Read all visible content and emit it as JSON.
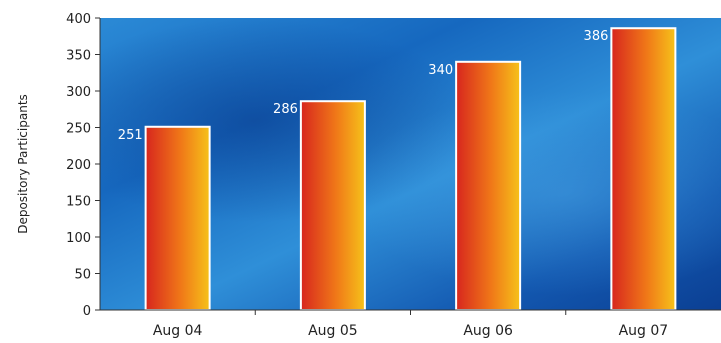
{
  "chart_data": {
    "type": "bar",
    "categories": [
      "Aug 04",
      "Aug 05",
      "Aug 06",
      "Aug 07"
    ],
    "values": [
      251,
      286,
      340,
      386
    ],
    "data_labels": [
      "251",
      "286",
      "340",
      "386"
    ],
    "title": "",
    "xlabel": "",
    "ylabel": "Depository Participants",
    "ylim": [
      0,
      400
    ],
    "yticks": [
      0,
      50,
      100,
      150,
      200,
      250,
      300,
      350,
      400
    ],
    "grid": false,
    "legend": "none",
    "colors": {
      "background_dark": "#0b3f93",
      "background_light": "#2f8fd8",
      "bar_red": "#d7261e",
      "bar_orange": "#f07818",
      "bar_yellow": "#f6c21a",
      "bar_outline": "#ffffff",
      "data_label_text": "#ffffff",
      "axis": "#333333"
    }
  }
}
